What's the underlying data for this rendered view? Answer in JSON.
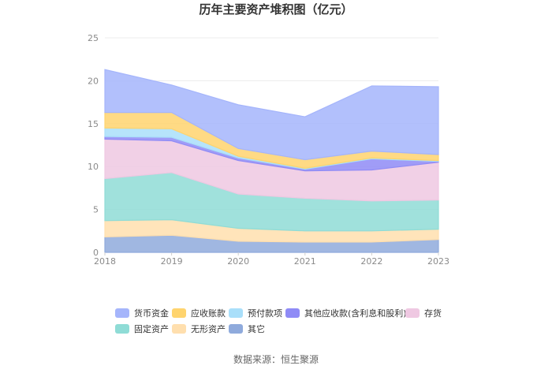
{
  "chart_data": {
    "type": "area",
    "title": "历年主要资产堆积图（亿元）",
    "xlabel": "",
    "ylabel": "",
    "x": [
      "2018",
      "2019",
      "2020",
      "2021",
      "2022",
      "2023"
    ],
    "ylim": [
      0,
      25
    ],
    "yticks": [
      0,
      5,
      10,
      15,
      20,
      25
    ],
    "stacked": true,
    "series": [
      {
        "name": "其它",
        "color": "#8faadc",
        "values": [
          1.8,
          2.0,
          1.3,
          1.2,
          1.2,
          1.5
        ]
      },
      {
        "name": "无形资产",
        "color": "#ffdfae",
        "values": [
          1.9,
          1.8,
          1.5,
          1.3,
          1.3,
          1.2
        ]
      },
      {
        "name": "固定资产",
        "color": "#8fdcd6",
        "values": [
          4.9,
          5.5,
          4.0,
          3.8,
          3.5,
          3.4
        ]
      },
      {
        "name": "存货",
        "color": "#efc8e2",
        "values": [
          4.6,
          3.7,
          3.9,
          3.2,
          3.6,
          4.4
        ]
      },
      {
        "name": "其他应收款(含利息和股利)",
        "color": "#8f8bf6",
        "values": [
          0.3,
          0.4,
          0.3,
          0.2,
          1.3,
          0.1
        ]
      },
      {
        "name": "预付款项",
        "color": "#a9dffa",
        "values": [
          1.0,
          1.0,
          0.2,
          0.1,
          0.1,
          0.1
        ]
      },
      {
        "name": "应收账款",
        "color": "#ffd46e",
        "values": [
          1.8,
          1.9,
          0.9,
          1.0,
          0.8,
          0.7
        ]
      },
      {
        "name": "货币资金",
        "color": "#a5b5fb",
        "values": [
          5.0,
          3.2,
          5.1,
          5.0,
          7.6,
          7.9
        ]
      }
    ],
    "legend": {
      "position": "bottom",
      "order": [
        "货币资金",
        "应收账款",
        "预付款项",
        "其他应收款(含利息和股利)",
        "存货",
        "固定资产",
        "无形资产",
        "其它"
      ]
    }
  },
  "source": "数据来源：恒生聚源"
}
